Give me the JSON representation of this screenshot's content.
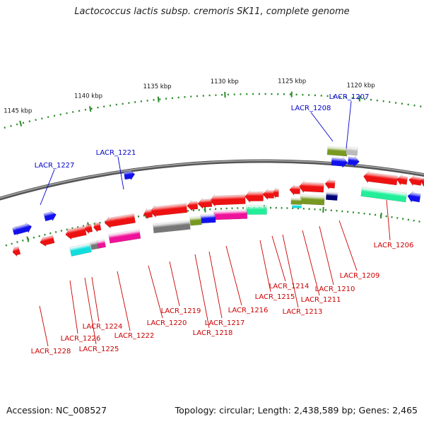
{
  "title": "Lactococcus lactis subsp. cremoris SK11, complete genome",
  "footer": {
    "accession": "Accession: NC_008527",
    "topology": "Topology: circular; Length: 2,438,589 bp; Genes: 2,465"
  },
  "colors": {
    "backbone": "#777777",
    "tick": "#2a8a2a",
    "forward_label": "#0000cc",
    "reverse_label": "#cc0000",
    "red": "#ee1111",
    "green": "#22ee99",
    "cyan": "#11dddd",
    "magenta": "#ee1199",
    "olive": "#779922",
    "gray": "#777777",
    "lightgray": "#bbbbbb",
    "blue": "#1111ee",
    "navy": "#000077"
  },
  "kbp_labels": [
    "1120 kbp",
    "1125 kbp",
    "1130 kbp",
    "1135 kbp",
    "1140 kbp",
    "1145 kbp"
  ],
  "forward_labels": [
    "LACR_1207",
    "LACR_1208",
    "LACR_1221",
    "LACR_1227"
  ],
  "reverse_labels": [
    "LACR_1206",
    "LACR_1209",
    "LACR_1210",
    "LACR_1211",
    "LACR_1213",
    "LACR_1214",
    "LACR_1215",
    "LACR_1216",
    "LACR_1217",
    "LACR_1218",
    "LACR_1219",
    "LACR_1220",
    "LACR_1222",
    "LACR_1224",
    "LACR_1225",
    "LACR_1226",
    "LACR_1228"
  ]
}
